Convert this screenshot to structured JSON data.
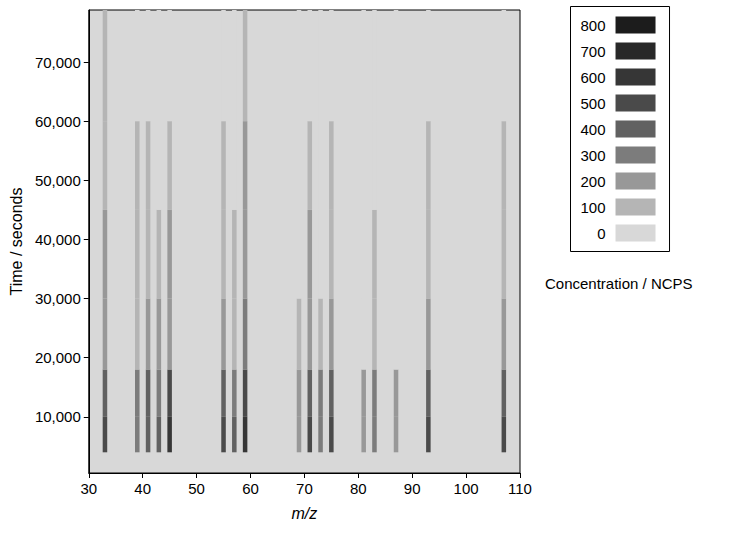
{
  "chart_data": {
    "type": "heatmap",
    "x_label": "m/z",
    "y_label": "Time / seconds",
    "xlim": [
      30,
      110
    ],
    "xticks": [
      30,
      40,
      50,
      60,
      70,
      80,
      90,
      100,
      110
    ],
    "ylim": [
      500,
      78800
    ],
    "yticks": [
      10000,
      20000,
      30000,
      40000,
      50000,
      60000,
      70000
    ],
    "time_bins": [
      4000,
      10000,
      18000,
      30000,
      45000,
      60000,
      78800
    ],
    "cells": [
      {
        "mz": 33,
        "values": [
          500,
          400,
          200,
          200,
          100,
          100
        ]
      },
      {
        "mz": 39,
        "values": [
          300,
          300,
          100,
          100,
          100,
          0
        ]
      },
      {
        "mz": 41,
        "values": [
          400,
          400,
          200,
          100,
          100,
          0
        ]
      },
      {
        "mz": 43,
        "values": [
          400,
          300,
          200,
          100,
          0,
          0
        ]
      },
      {
        "mz": 45,
        "values": [
          600,
          500,
          200,
          200,
          100,
          0
        ]
      },
      {
        "mz": 55,
        "values": [
          500,
          400,
          200,
          100,
          100,
          0
        ]
      },
      {
        "mz": 57,
        "values": [
          400,
          300,
          100,
          100,
          0,
          0
        ]
      },
      {
        "mz": 59,
        "values": [
          600,
          500,
          300,
          200,
          200,
          100
        ]
      },
      {
        "mz": 69,
        "values": [
          200,
          200,
          100,
          0,
          0,
          0
        ]
      },
      {
        "mz": 71,
        "values": [
          500,
          400,
          200,
          200,
          100,
          0
        ]
      },
      {
        "mz": 73,
        "values": [
          300,
          300,
          100,
          0,
          0,
          0
        ]
      },
      {
        "mz": 75,
        "values": [
          500,
          400,
          200,
          100,
          100,
          0
        ]
      },
      {
        "mz": 81,
        "values": [
          200,
          200,
          0,
          0,
          0,
          0
        ]
      },
      {
        "mz": 83,
        "values": [
          300,
          300,
          100,
          100,
          0,
          0
        ]
      },
      {
        "mz": 87,
        "values": [
          200,
          200,
          0,
          0,
          0,
          0
        ]
      },
      {
        "mz": 93,
        "values": [
          500,
          400,
          200,
          100,
          100,
          0
        ]
      },
      {
        "mz": 107,
        "values": [
          500,
          400,
          200,
          100,
          100,
          0
        ]
      }
    ],
    "colorbar": {
      "label": "Concentration / NCPS",
      "levels": [
        0,
        100,
        200,
        300,
        400,
        500,
        600,
        700,
        800
      ],
      "colors": [
        "#d8d8d8",
        "#b5b5b5",
        "#989898",
        "#7c7c7c",
        "#616161",
        "#4a4a4a",
        "#363636",
        "#282828",
        "#1c1c1c"
      ]
    }
  }
}
